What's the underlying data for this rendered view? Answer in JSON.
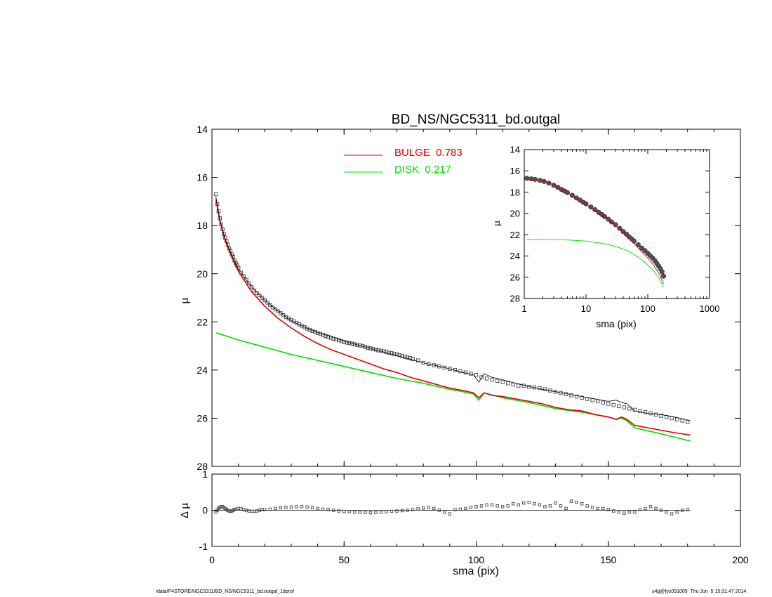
{
  "chart_data": [
    {
      "name": "main-profile",
      "type": "line",
      "title": "BD_NS/NGC5311_bd.outgal",
      "xlabel": "",
      "ylabel": "µ",
      "xlim": [
        0,
        200
      ],
      "ylim": [
        28,
        14
      ],
      "y_inverted": true,
      "xticks": [
        0,
        50,
        100,
        150,
        200
      ],
      "yticks": [
        14,
        16,
        18,
        20,
        22,
        24,
        26,
        28
      ],
      "legend": [
        {
          "label": "BULGE  0.783",
          "color": "#e00000"
        },
        {
          "label": "DISK  0.217",
          "color": "#00dd00"
        }
      ],
      "legend_position": "top-center",
      "observed_points": {
        "marker": "open-square",
        "x": [
          1.5,
          2,
          2.5,
          3,
          3.5,
          4,
          4.5,
          5,
          5.5,
          6,
          6.5,
          7,
          7.5,
          8,
          8.5,
          9,
          9.5,
          10,
          11,
          12,
          13,
          14,
          15,
          16,
          17,
          18,
          19,
          20,
          21,
          22,
          23,
          24,
          25,
          26,
          27,
          28,
          29,
          30,
          31,
          32,
          33,
          34,
          35,
          36,
          37,
          38,
          39,
          40,
          41,
          42,
          43,
          44,
          45,
          46,
          47,
          48,
          49,
          50,
          51,
          52,
          53,
          54,
          55,
          56,
          57,
          58,
          59,
          60,
          61,
          62,
          63,
          64,
          65,
          66,
          67,
          68,
          69,
          70,
          71,
          72,
          73,
          74,
          75,
          76,
          78,
          80,
          82,
          84,
          86,
          88,
          90,
          92,
          94,
          96,
          98,
          100,
          102,
          104,
          106,
          108,
          110,
          112,
          114,
          116,
          118,
          120,
          122,
          124,
          126,
          128,
          130,
          132,
          134,
          136,
          138,
          140,
          142,
          144,
          146,
          148,
          150,
          152,
          154,
          156,
          158,
          160,
          162,
          164,
          166,
          168,
          170,
          172,
          174,
          176,
          178,
          180
        ],
        "y": [
          16.7,
          17.1,
          17.4,
          17.7,
          17.95,
          18.15,
          18.35,
          18.5,
          18.65,
          18.8,
          18.95,
          19.05,
          19.2,
          19.3,
          19.45,
          19.55,
          19.65,
          19.75,
          19.95,
          20.1,
          20.25,
          20.4,
          20.55,
          20.7,
          20.8,
          20.9,
          21.0,
          21.1,
          21.2,
          21.3,
          21.4,
          21.48,
          21.56,
          21.64,
          21.72,
          21.8,
          21.86,
          21.92,
          21.98,
          22.04,
          22.1,
          22.16,
          22.22,
          22.28,
          22.33,
          22.38,
          22.42,
          22.46,
          22.5,
          22.54,
          22.58,
          22.62,
          22.66,
          22.7,
          22.73,
          22.76,
          22.8,
          22.84,
          22.86,
          22.88,
          22.9,
          22.93,
          22.96,
          22.98,
          23.0,
          23.04,
          23.08,
          23.1,
          23.13,
          23.15,
          23.18,
          23.2,
          23.22,
          23.25,
          23.28,
          23.3,
          23.33,
          23.35,
          23.38,
          23.42,
          23.45,
          23.48,
          23.5,
          23.55,
          23.6,
          23.7,
          23.75,
          23.8,
          23.85,
          23.9,
          23.95,
          24.0,
          24.05,
          24.1,
          24.15,
          24.2,
          24.3,
          24.35,
          24.4,
          24.45,
          24.5,
          24.55,
          24.6,
          24.65,
          24.65,
          24.7,
          24.72,
          24.75,
          24.8,
          24.85,
          24.9,
          24.95,
          25.0,
          25.05,
          25.1,
          25.15,
          25.2,
          25.25,
          25.3,
          25.35,
          25.4,
          25.45,
          25.5,
          25.55,
          25.6,
          25.65,
          25.7,
          25.75,
          25.8,
          25.85,
          25.9,
          25.95,
          26.0,
          26.05,
          26.1,
          26.15
        ]
      },
      "model_line": {
        "color": "#000000",
        "x": [
          1.5,
          3,
          5,
          7,
          10,
          15,
          20,
          25,
          30,
          35,
          40,
          45,
          50,
          55,
          60,
          65,
          70,
          75,
          80,
          85,
          90,
          95,
          99,
          101,
          103,
          106,
          110,
          115,
          120,
          125,
          130,
          135,
          140,
          145,
          150,
          153,
          155,
          157,
          160,
          165,
          170,
          175,
          181
        ],
        "y": [
          16.8,
          17.75,
          18.55,
          19.1,
          19.8,
          20.55,
          21.1,
          21.55,
          21.95,
          22.22,
          22.45,
          22.6,
          22.8,
          22.95,
          23.1,
          23.25,
          23.4,
          23.55,
          23.7,
          23.82,
          23.95,
          24.1,
          24.2,
          24.5,
          24.15,
          24.3,
          24.4,
          24.55,
          24.68,
          24.8,
          24.9,
          25.0,
          25.1,
          25.2,
          25.3,
          25.25,
          25.35,
          25.4,
          25.7,
          25.8,
          25.85,
          25.95,
          26.1
        ]
      },
      "bulge_line": {
        "color": "#e00000",
        "x": [
          1.5,
          3,
          5,
          7,
          10,
          15,
          20,
          25,
          30,
          35,
          40,
          45,
          50,
          55,
          60,
          65,
          70,
          75,
          80,
          85,
          90,
          95,
          99,
          101,
          103,
          106,
          110,
          115,
          120,
          125,
          130,
          135,
          140,
          145,
          150,
          153,
          155,
          157,
          160,
          165,
          170,
          175,
          181
        ],
        "y": [
          16.9,
          17.8,
          18.6,
          19.15,
          19.9,
          20.75,
          21.35,
          21.85,
          22.25,
          22.6,
          22.9,
          23.15,
          23.35,
          23.55,
          23.75,
          23.95,
          24.1,
          24.3,
          24.45,
          24.6,
          24.75,
          24.85,
          24.95,
          25.15,
          24.95,
          25.05,
          25.1,
          25.2,
          25.3,
          25.4,
          25.55,
          25.65,
          25.7,
          25.85,
          25.95,
          26.05,
          25.95,
          26.05,
          26.3,
          26.4,
          26.5,
          26.6,
          26.7
        ]
      },
      "disk_line": {
        "color": "#00dd00",
        "x": [
          1.5,
          10,
          20,
          30,
          40,
          50,
          60,
          70,
          80,
          90,
          95,
          99,
          101,
          103,
          110,
          120,
          130,
          140,
          150,
          153,
          155,
          157,
          160,
          170,
          181
        ],
        "y": [
          22.45,
          22.75,
          23.05,
          23.35,
          23.6,
          23.85,
          24.1,
          24.35,
          24.55,
          24.8,
          24.9,
          25.0,
          25.25,
          24.95,
          25.15,
          25.35,
          25.6,
          25.75,
          25.95,
          26.05,
          26.0,
          26.1,
          26.4,
          26.65,
          26.95
        ]
      }
    },
    {
      "name": "residuals",
      "type": "scatter",
      "xlabel": "sma (pix)",
      "ylabel": "Δ µ",
      "xlim": [
        0,
        200
      ],
      "ylim": [
        -1,
        1
      ],
      "xticks": [
        0,
        50,
        100,
        150,
        200
      ],
      "yticks": [
        -1,
        0,
        1
      ],
      "residual_points": {
        "marker": "open-square",
        "x": [
          1.5,
          2,
          2.5,
          3,
          3.5,
          4,
          4.5,
          5,
          5.5,
          6,
          6.5,
          7,
          7.5,
          8,
          8.5,
          9,
          10,
          11,
          12,
          13,
          14,
          15,
          16,
          17,
          18,
          19,
          20,
          22,
          24,
          26,
          28,
          30,
          32,
          34,
          36,
          38,
          40,
          42,
          44,
          46,
          48,
          50,
          52,
          54,
          56,
          58,
          60,
          62,
          64,
          66,
          68,
          70,
          72,
          74,
          76,
          78,
          80,
          82,
          84,
          86,
          88,
          90,
          92,
          94,
          96,
          98,
          100,
          102,
          104,
          106,
          108,
          110,
          112,
          114,
          116,
          118,
          120,
          122,
          124,
          126,
          128,
          130,
          132,
          134,
          136,
          138,
          140,
          142,
          144,
          146,
          148,
          150,
          152,
          154,
          156,
          158,
          160,
          162,
          164,
          166,
          168,
          170,
          172,
          174,
          176,
          178,
          180
        ],
        "y": [
          -0.05,
          0.0,
          0.05,
          0.08,
          0.1,
          0.1,
          0.08,
          0.05,
          0.02,
          0.0,
          -0.02,
          -0.03,
          -0.02,
          0.0,
          0.02,
          0.03,
          0.05,
          0.04,
          0.02,
          0.0,
          -0.02,
          -0.03,
          -0.03,
          -0.02,
          0.0,
          0.02,
          0.02,
          0.03,
          0.05,
          0.07,
          0.08,
          0.09,
          0.1,
          0.1,
          0.09,
          0.07,
          0.05,
          0.03,
          0.02,
          0.0,
          -0.02,
          -0.03,
          -0.04,
          -0.05,
          -0.06,
          -0.06,
          -0.07,
          -0.06,
          -0.05,
          -0.04,
          -0.03,
          -0.02,
          -0.01,
          0.0,
          0.02,
          0.04,
          0.06,
          0.08,
          0.05,
          0.0,
          -0.05,
          -0.1,
          0.02,
          0.03,
          0.05,
          0.08,
          0.1,
          0.12,
          0.15,
          0.15,
          0.12,
          0.1,
          0.12,
          0.18,
          0.15,
          0.2,
          0.22,
          0.18,
          0.15,
          0.1,
          0.12,
          0.2,
          0.12,
          0.05,
          0.25,
          0.22,
          0.18,
          0.12,
          0.08,
          0.05,
          0.05,
          0.02,
          -0.02,
          -0.05,
          -0.08,
          -0.05,
          -0.05,
          0.02,
          0.05,
          0.1,
          0.05,
          0.0,
          -0.05,
          -0.1,
          -0.05,
          0.0,
          0.02
        ]
      }
    },
    {
      "name": "inset-log-profile",
      "type": "line",
      "xlabel": "sma (pix)",
      "ylabel": "µ",
      "x_scale": "log",
      "xlim": [
        1,
        1000
      ],
      "ylim": [
        28,
        14
      ],
      "y_inverted": true,
      "xticks": [
        1,
        10,
        100,
        1000
      ],
      "yticks": [
        14,
        16,
        18,
        20,
        22,
        24,
        26,
        28
      ],
      "observed_points": {
        "marker": "filled-circle",
        "x": [
          1.1,
          1.3,
          1.5,
          1.8,
          2.1,
          2.5,
          3,
          3.5,
          4,
          4.5,
          5,
          6,
          7,
          8,
          9,
          10,
          12,
          14,
          16,
          18,
          20,
          23,
          26,
          30,
          35,
          40,
          45,
          50,
          55,
          60,
          70,
          80,
          90,
          100,
          110,
          120,
          130,
          140,
          150,
          160,
          170,
          180
        ],
        "y": [
          16.7,
          16.75,
          16.8,
          16.9,
          17.0,
          17.15,
          17.35,
          17.55,
          17.75,
          17.9,
          18.05,
          18.3,
          18.55,
          18.75,
          18.95,
          19.1,
          19.4,
          19.65,
          19.9,
          20.1,
          20.3,
          20.55,
          20.8,
          21.05,
          21.4,
          21.7,
          21.95,
          22.2,
          22.4,
          22.6,
          22.95,
          23.25,
          23.5,
          23.75,
          24.0,
          24.2,
          24.45,
          24.7,
          24.95,
          25.2,
          25.5,
          25.9
        ]
      },
      "bulge_line": {
        "color": "#e00000",
        "x": [
          1.1,
          2,
          3,
          5,
          8,
          10,
          15,
          20,
          30,
          40,
          50,
          60,
          80,
          100,
          120,
          150,
          180
        ],
        "y": [
          16.75,
          16.95,
          17.3,
          18.05,
          18.8,
          19.1,
          19.9,
          20.35,
          21.15,
          21.85,
          22.4,
          22.85,
          23.6,
          24.2,
          24.75,
          25.6,
          26.6
        ]
      },
      "disk_line": {
        "color": "#00dd00",
        "x": [
          1.1,
          2,
          5,
          10,
          20,
          30,
          40,
          50,
          60,
          80,
          100,
          120,
          150,
          180
        ],
        "y": [
          22.45,
          22.46,
          22.5,
          22.6,
          22.85,
          23.1,
          23.35,
          23.6,
          23.85,
          24.35,
          24.85,
          25.3,
          26.0,
          26.95
        ]
      }
    }
  ],
  "footer": {
    "path": "/data/P4STORE/NGC5311/BD_NS/NGC5311_bd.outgal_1dprof",
    "stamp": "s4g@fys091005  Thu Jun  5 15:31:47 2014"
  }
}
